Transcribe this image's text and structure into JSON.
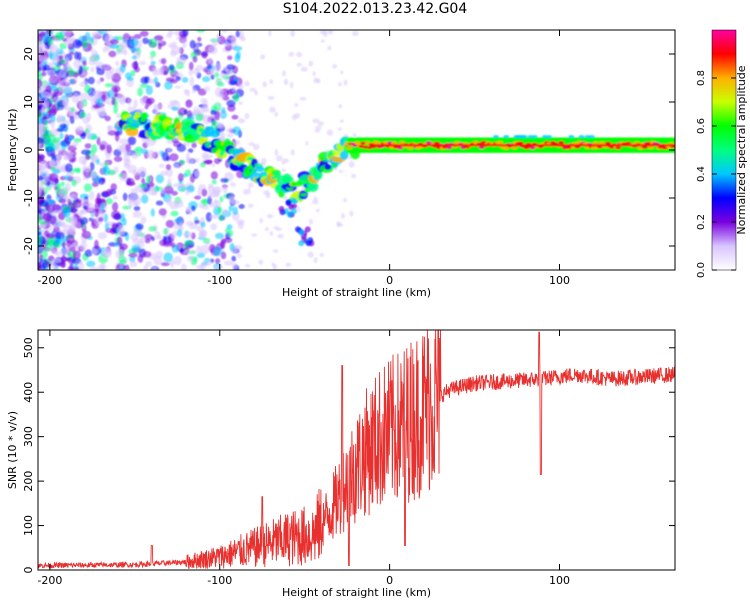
{
  "title": "S104.2022.013.23.42.G04",
  "chart_data": [
    {
      "type": "heatmap",
      "xlabel": "Height of straight line (km)",
      "ylabel": "Frequency (Hz)",
      "xlim": [
        -207,
        168
      ],
      "ylim": [
        -25,
        25
      ],
      "xticks": [
        -200,
        -100,
        0,
        100
      ],
      "yticks": [
        -20,
        -10,
        0,
        10,
        20
      ],
      "colorbar": {
        "label": "Normalized spectral amplitude",
        "range": [
          0,
          1
        ],
        "ticks": [
          "0.0",
          "0.2",
          "0.4",
          "0.6",
          "0.8"
        ],
        "tick_values": [
          0.0,
          0.2,
          0.4,
          0.6,
          0.8
        ],
        "colormap": [
          "#ffffff",
          "#d8c4ff",
          "#7a00e0",
          "#0000ff",
          "#00c8ff",
          "#00ff7f",
          "#00ff00",
          "#c8ff00",
          "#ffb000",
          "#ff0000",
          "#ff00a0"
        ]
      },
      "ridge": [
        {
          "x": -158,
          "y": 6
        },
        {
          "x": -140,
          "y": 5
        },
        {
          "x": -120,
          "y": 4
        },
        {
          "x": -100,
          "y": 1
        },
        {
          "x": -85,
          "y": -3
        },
        {
          "x": -70,
          "y": -6
        },
        {
          "x": -55,
          "y": -9
        },
        {
          "x": -40,
          "y": -4
        },
        {
          "x": -25,
          "y": 1
        },
        {
          "x": -10,
          "y": 1
        },
        {
          "x": 0,
          "y": 1
        },
        {
          "x": 168,
          "y": 1
        }
      ],
      "branch": [
        {
          "x": -60,
          "y": -12
        },
        {
          "x": -50,
          "y": -18
        }
      ]
    },
    {
      "type": "line",
      "xlabel": "Height of straight line (km)",
      "ylabel": "SNR (10 * v/v)",
      "xlim": [
        -207,
        168
      ],
      "ylim": [
        0,
        540
      ],
      "xticks": [
        -200,
        -100,
        0,
        100
      ],
      "yticks": [
        0,
        100,
        200,
        300,
        400,
        500
      ],
      "color": "#e8302e",
      "envelope": [
        {
          "x": -207,
          "y": 10
        },
        {
          "x": -150,
          "y": 12
        },
        {
          "x": -120,
          "y": 18
        },
        {
          "x": -100,
          "y": 30
        },
        {
          "x": -80,
          "y": 50
        },
        {
          "x": -60,
          "y": 70
        },
        {
          "x": -45,
          "y": 80
        },
        {
          "x": -35,
          "y": 130
        },
        {
          "x": -25,
          "y": 200
        },
        {
          "x": -15,
          "y": 260
        },
        {
          "x": -5,
          "y": 300
        },
        {
          "x": 5,
          "y": 320
        },
        {
          "x": 15,
          "y": 345
        },
        {
          "x": 25,
          "y": 380
        },
        {
          "x": 35,
          "y": 405
        },
        {
          "x": 50,
          "y": 420
        },
        {
          "x": 70,
          "y": 425
        },
        {
          "x": 90,
          "y": 430
        },
        {
          "x": 110,
          "y": 440
        },
        {
          "x": 130,
          "y": 430
        },
        {
          "x": 150,
          "y": 435
        },
        {
          "x": 168,
          "y": 440
        }
      ],
      "spikes": [
        {
          "x": -140,
          "y": 55
        },
        {
          "x": -75,
          "y": 165
        },
        {
          "x": -28,
          "y": 460
        },
        {
          "x": -24,
          "y": 10
        },
        {
          "x": 9,
          "y": 55
        },
        {
          "x": 88,
          "y": 535
        },
        {
          "x": 89,
          "y": 215
        }
      ]
    }
  ]
}
